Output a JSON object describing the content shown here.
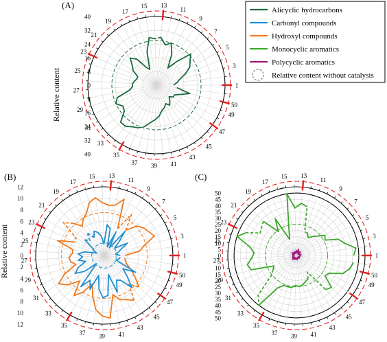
{
  "legend": {
    "items": [
      {
        "label": "Alicyclic hydrocarbons",
        "color": "#1a6b3c",
        "style": "line"
      },
      {
        "label": "Carbonyl compounds",
        "color": "#1f8fd0",
        "style": "line"
      },
      {
        "label": "Hydroxyl compounds",
        "color": "#f07a1e",
        "style": "line"
      },
      {
        "label": "Monocyclic aromatics",
        "color": "#3aa829",
        "style": "line"
      },
      {
        "label": "Polycyclic aromatics",
        "color": "#a0177a",
        "style": "line"
      },
      {
        "label": "Relative content without catalysis",
        "color": "#666666",
        "style": "dashed-circle"
      }
    ]
  },
  "chart_data": [
    {
      "type": "polar-line",
      "panel_label": "(A)",
      "ylabel": "Relative content",
      "rmax": 40,
      "radial_ticks": [
        0,
        8,
        16,
        24,
        32,
        40
      ],
      "angular_labels": [
        1,
        3,
        5,
        7,
        9,
        11,
        13,
        15,
        17,
        19,
        21,
        23,
        25,
        27,
        29,
        31,
        33,
        35,
        37,
        39,
        41,
        43,
        45,
        47,
        49,
        50
      ],
      "red_marked_positions": [
        1,
        13,
        23,
        35,
        47,
        50
      ],
      "series": [
        {
          "color": "#1a6b3c",
          "values": [
            10,
            12,
            14,
            18,
            22,
            24,
            27,
            18,
            12,
            20,
            26,
            24,
            28,
            27,
            28,
            20,
            10,
            12,
            19,
            22,
            18,
            16,
            12,
            12,
            13,
            14,
            14,
            16,
            24,
            26,
            23,
            24,
            30,
            30,
            28,
            27,
            25,
            22,
            20,
            18,
            15,
            14,
            12,
            14,
            12,
            10,
            12,
            12,
            15,
            20,
            12
          ],
          "dashed_segments": [
            [
              13,
              14
            ],
            [
              36,
              37
            ]
          ],
          "reference_circle": 26
        }
      ]
    },
    {
      "type": "polar-line",
      "panel_label": "(B)",
      "ylabel": "Relative content",
      "rmax": 12,
      "radial_ticks": [
        0,
        2,
        4,
        6,
        8,
        10,
        12
      ],
      "angular_labels": [
        1,
        3,
        5,
        7,
        9,
        11,
        13,
        15,
        17,
        19,
        21,
        23,
        25,
        27,
        29,
        31,
        33,
        35,
        37,
        39,
        41,
        43,
        45,
        47,
        49,
        50
      ],
      "red_marked_positions": [
        1,
        13,
        23,
        35,
        47,
        50
      ],
      "series": [
        {
          "color": "#f07a1e",
          "values": [
            3.6,
            6.2,
            7.2,
            9.4,
            8.8,
            8.4,
            7.6,
            5.8,
            8.6,
            5.2,
            10.4,
            9.0,
            8.8,
            9.2,
            10.2,
            9.6,
            8.0,
            7.4,
            6.4,
            7.8,
            9.2,
            5.8,
            5.6,
            8.6,
            5.6,
            5.6,
            6.2,
            6.0,
            5.2,
            7.6,
            9.4,
            8.2,
            6.2,
            8.8,
            7.4,
            5.4,
            7.4,
            9.6,
            10.6,
            11.0,
            7.0,
            8.2,
            8.6,
            9.4,
            6.6,
            8.2,
            6.6,
            5.4,
            4.2,
            3.8,
            3.6
          ],
          "dashed_segments": [
            [
              8,
              10
            ],
            [
              20,
              23
            ],
            [
              44,
              46
            ]
          ],
          "reference_circle": 7.5
        },
        {
          "color": "#1f8fd0",
          "values": [
            2.8,
            2.0,
            2.6,
            3.2,
            4.6,
            2.2,
            3.4,
            5.6,
            1.6,
            4.6,
            1.6,
            4.8,
            5.4,
            2.0,
            3.4,
            4.2,
            4.6,
            3.6,
            5.0,
            3.6,
            4.4,
            2.4,
            2.0,
            1.4,
            3.4,
            4.6,
            3.8,
            4.6,
            3.4,
            5.0,
            6.0,
            4.4,
            2.0,
            6.8,
            5.0,
            6.4,
            3.6,
            6.0,
            7.4,
            7.0,
            3.4,
            6.8,
            4.8,
            5.2,
            7.4,
            5.4,
            4.0,
            6.2,
            2.2,
            2.6,
            2.8
          ],
          "dashed_segments": [
            [
              18,
              21
            ]
          ],
          "reference_circle": 2.2
        }
      ]
    },
    {
      "type": "polar-line",
      "panel_label": "(C)",
      "ylabel": "",
      "rmax": 55,
      "radial_ticks": [
        0,
        5,
        10,
        15,
        20,
        25,
        30,
        35,
        40,
        45,
        50
      ],
      "angular_labels": [
        1,
        3,
        5,
        7,
        9,
        11,
        13,
        15,
        17,
        19,
        21,
        23,
        25,
        27,
        29,
        31,
        33,
        35,
        37,
        39,
        41,
        43,
        45,
        47,
        49,
        50
      ],
      "red_marked_positions": [
        1,
        13,
        23,
        35,
        47,
        50
      ],
      "series": [
        {
          "color": "#3aa829",
          "values": [
            46,
            48,
            40,
            36,
            26,
            28,
            23,
            20,
            17,
            20,
            20,
            40,
            42,
            38,
            50,
            22,
            14,
            34,
            24,
            38,
            36,
            34,
            44,
            50,
            38,
            34,
            36,
            40,
            38,
            20,
            22,
            26,
            44,
            50,
            30,
            26,
            26,
            26,
            24,
            25,
            24,
            22,
            21,
            16,
            36,
            38,
            28,
            30,
            40,
            44,
            46
          ],
          "dashed_segments": [
            [
              10,
              12
            ],
            [
              20,
              23
            ],
            [
              31,
              34
            ],
            [
              43,
              45
            ]
          ],
          "reference_circle": 25
        },
        {
          "color": "#a0177a",
          "values": [
            2.5,
            3.8,
            3.0,
            1.6,
            3.2,
            2.8,
            4.2,
            2.0,
            3.6,
            2.6,
            5.2,
            2.4,
            2.0,
            4.0,
            3.0,
            2.2,
            1.8,
            3.4,
            2.6,
            2.0,
            3.0,
            4.2,
            2.4,
            3.2,
            1.8,
            2.6,
            3.0,
            2.0,
            2.8,
            3.6,
            2.2,
            3.0,
            4.4,
            2.6,
            2.0,
            3.4,
            2.8,
            2.4,
            3.0,
            2.2,
            3.4,
            2.6,
            2.0,
            1.8,
            2.6,
            3.2,
            2.4,
            2.0,
            2.6,
            3.0,
            2.5
          ],
          "dashed_segments": [],
          "reference_circle": null
        }
      ]
    }
  ]
}
